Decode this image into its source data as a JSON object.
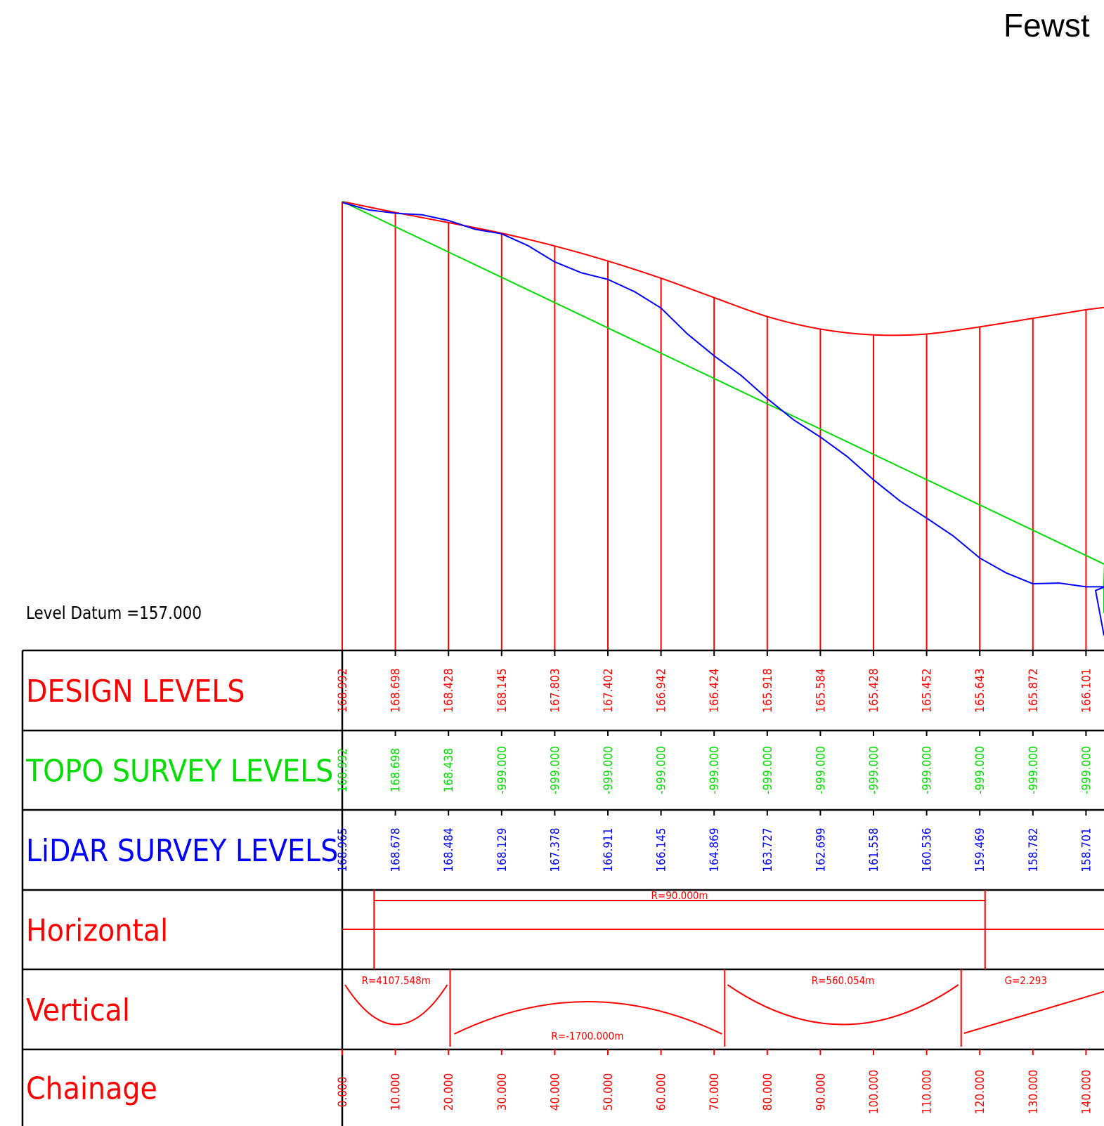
{
  "title": "Fewst",
  "datum_label": "Level Datum =157.000",
  "colors": {
    "design": "#ff0000",
    "topo": "#00dd00",
    "lidar": "#0000ff",
    "frame": "#000000"
  },
  "rows": [
    {
      "id": "design",
      "label": "DESIGN LEVELS",
      "color": "#ff0000"
    },
    {
      "id": "topo",
      "label": "TOPO SURVEY LEVELS",
      "color": "#00dd00"
    },
    {
      "id": "lidar",
      "label": "LiDAR SURVEY LEVELS",
      "color": "#0000ff"
    },
    {
      "id": "horizontal",
      "label": "Horizontal",
      "color": "#ff0000"
    },
    {
      "id": "vertical",
      "label": "Vertical",
      "color": "#ff0000"
    },
    {
      "id": "chainage",
      "label": "Chainage",
      "color": "#ff0000"
    }
  ],
  "chainages": [
    "0.000",
    "10.000",
    "20.000",
    "30.000",
    "40.000",
    "50.000",
    "60.000",
    "70.000",
    "80.000",
    "90.000",
    "100.000",
    "110.000",
    "120.000",
    "130.000",
    "140.000"
  ],
  "design_levels": [
    "168.992",
    "168.698",
    "168.428",
    "168.145",
    "167.803",
    "167.402",
    "166.942",
    "166.424",
    "165.918",
    "165.584",
    "165.428",
    "165.452",
    "165.643",
    "165.872",
    "166.101"
  ],
  "topo_levels": [
    "168.992",
    "168.698",
    "168.438",
    "-999.000",
    "-999.000",
    "-999.000",
    "-999.000",
    "-999.000",
    "-999.000",
    "-999.000",
    "-999.000",
    "-999.000",
    "-999.000",
    "-999.000",
    "-999.000"
  ],
  "lidar_levels": [
    "168.965",
    "168.678",
    "168.484",
    "168.129",
    "167.378",
    "166.911",
    "166.145",
    "164.869",
    "163.727",
    "162.699",
    "161.558",
    "160.536",
    "159.469",
    "158.782",
    "158.701"
  ],
  "horizontal": {
    "label": "R=90.000m",
    "start": 6.0,
    "end": 121.0
  },
  "vertical": [
    {
      "label": "R=4107.548m",
      "type": "sag",
      "start": 0,
      "end": 20.3,
      "label_pos": "top"
    },
    {
      "label": "R=-1700.000m",
      "type": "crest",
      "start": 20.3,
      "end": 72.0,
      "label_pos": "bottom"
    },
    {
      "label": "R=560.054m",
      "type": "sag",
      "start": 72.0,
      "end": 116.5,
      "label_pos": "top"
    },
    {
      "label": "G=2.293",
      "type": "grade",
      "start": 116.5,
      "end": 145.0,
      "label_pos": "top"
    }
  ]
}
